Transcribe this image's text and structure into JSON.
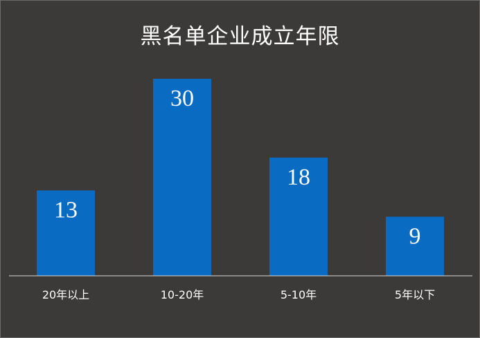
{
  "chart_data": {
    "type": "bar",
    "title": "黑名单企业成立年限",
    "categories": [
      "20年以上",
      "10-20年",
      "5-10年",
      "5年以下"
    ],
    "values": [
      13,
      30,
      18,
      9
    ],
    "xlabel": "",
    "ylabel": "",
    "ylim": [
      0,
      30
    ],
    "grid": false,
    "legend": "none",
    "data_labels": "inside-top",
    "colors": {
      "background": "#3b3a38",
      "bar": "#0a6bc2",
      "text": "#ffffff",
      "axis": "#d9d9d9"
    }
  }
}
